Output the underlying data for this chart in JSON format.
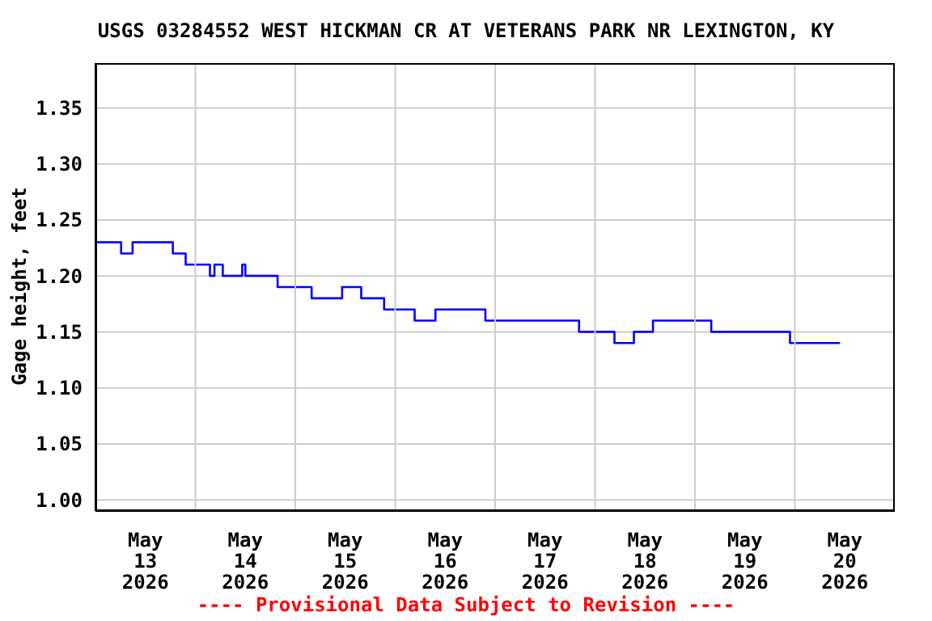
{
  "chart_data": {
    "type": "step",
    "title": "USGS 03284552 WEST HICKMAN CR AT VETERANS PARK NR LEXINGTON, KY",
    "ylabel": "Gage height, feet",
    "annotations": [
      "---- Provisional Data Subject to Revision ----"
    ],
    "x": [
      "2026-05-13T00:00",
      "2026-05-13T06:10",
      "2026-05-13T08:55",
      "2026-05-13T18:35",
      "2026-05-13T21:40",
      "2026-05-14T03:30",
      "2026-05-14T04:35",
      "2026-05-14T06:35",
      "2026-05-14T11:15",
      "2026-05-14T12:00",
      "2026-05-14T19:45",
      "2026-05-15T03:55",
      "2026-05-15T11:15",
      "2026-05-15T15:50",
      "2026-05-15T21:20",
      "2026-05-16T04:40",
      "2026-05-16T09:40",
      "2026-05-16T21:40",
      "2026-05-17T20:10",
      "2026-05-18T04:40",
      "2026-05-18T09:20",
      "2026-05-18T13:55",
      "2026-05-19T03:55",
      "2026-05-19T22:50",
      "2026-05-20T10:50"
    ],
    "series": [
      {
        "color": "#0000ff",
        "values": [
          1.23,
          1.22,
          1.23,
          1.22,
          1.21,
          1.2,
          1.21,
          1.2,
          1.21,
          1.2,
          1.19,
          1.18,
          1.19,
          1.18,
          1.17,
          1.16,
          1.17,
          1.16,
          1.15,
          1.14,
          1.15,
          1.16,
          1.15,
          1.14,
          1.14
        ]
      }
    ],
    "xlim": [
      "2026-05-13T00:00",
      "2026-05-21T00:00"
    ],
    "xticks": [
      {
        "value": "2026-05-13T12:00",
        "label": "May\n13\n2026"
      },
      {
        "value": "2026-05-14T12:00",
        "label": "May\n14\n2026"
      },
      {
        "value": "2026-05-15T12:00",
        "label": "May\n15\n2026"
      },
      {
        "value": "2026-05-16T12:00",
        "label": "May\n16\n2026"
      },
      {
        "value": "2026-05-17T12:00",
        "label": "May\n17\n2026"
      },
      {
        "value": "2026-05-18T12:00",
        "label": "May\n18\n2026"
      },
      {
        "value": "2026-05-19T12:00",
        "label": "May\n19\n2026"
      },
      {
        "value": "2026-05-20T12:00",
        "label": "May\n20\n2026"
      },
      {
        "value": "2026-05-14T00:00",
        "label": null
      },
      {
        "value": "2026-05-15T00:00",
        "label": null
      },
      {
        "value": "2026-05-16T00:00",
        "label": null
      },
      {
        "value": "2026-05-17T00:00",
        "label": null
      },
      {
        "value": "2026-05-18T00:00",
        "label": null
      },
      {
        "value": "2026-05-19T00:00",
        "label": null
      },
      {
        "value": "2026-05-20T00:00",
        "label": null
      }
    ],
    "ylim": [
      0.99,
      1.39
    ],
    "yticks": [
      {
        "value": 1,
        "label": "1.00"
      },
      1.05,
      {
        "value": 1.1,
        "label": "1.10"
      },
      1.15,
      {
        "value": 1.2,
        "label": "1.20"
      },
      1.25,
      {
        "value": 1.3,
        "label": "1.30"
      },
      1.35
    ],
    "grid": true,
    "marker": "none",
    "line_style": "solid"
  }
}
